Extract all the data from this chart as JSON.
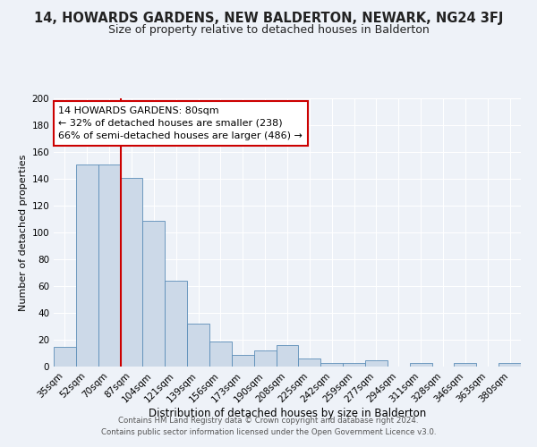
{
  "title": "14, HOWARDS GARDENS, NEW BALDERTON, NEWARK, NG24 3FJ",
  "subtitle": "Size of property relative to detached houses in Balderton",
  "xlabel": "Distribution of detached houses by size in Balderton",
  "ylabel": "Number of detached properties",
  "bar_labels": [
    "35sqm",
    "52sqm",
    "70sqm",
    "87sqm",
    "104sqm",
    "121sqm",
    "139sqm",
    "156sqm",
    "173sqm",
    "190sqm",
    "208sqm",
    "225sqm",
    "242sqm",
    "259sqm",
    "277sqm",
    "294sqm",
    "311sqm",
    "328sqm",
    "346sqm",
    "363sqm",
    "380sqm"
  ],
  "bar_values": [
    15,
    151,
    151,
    141,
    109,
    64,
    32,
    19,
    9,
    12,
    16,
    6,
    3,
    3,
    5,
    0,
    3,
    0,
    3,
    0,
    3
  ],
  "bar_color": "#ccd9e8",
  "bar_edge_color": "#5b8db8",
  "vline_index": 2,
  "vline_color": "#cc0000",
  "annotation_title": "14 HOWARDS GARDENS: 80sqm",
  "annotation_line1": "← 32% of detached houses are smaller (238)",
  "annotation_line2": "66% of semi-detached houses are larger (486) →",
  "annotation_box_color": "#ffffff",
  "annotation_box_edge": "#cc0000",
  "ylim": [
    0,
    200
  ],
  "yticks": [
    0,
    20,
    40,
    60,
    80,
    100,
    120,
    140,
    160,
    180,
    200
  ],
  "background_color": "#eef2f8",
  "grid_color": "#ffffff",
  "footer1": "Contains HM Land Registry data © Crown copyright and database right 2024.",
  "footer2": "Contains public sector information licensed under the Open Government Licence v3.0.",
  "title_fontsize": 10.5,
  "subtitle_fontsize": 9,
  "xlabel_fontsize": 8.5,
  "ylabel_fontsize": 8,
  "tick_fontsize": 7.5,
  "annot_fontsize": 8
}
